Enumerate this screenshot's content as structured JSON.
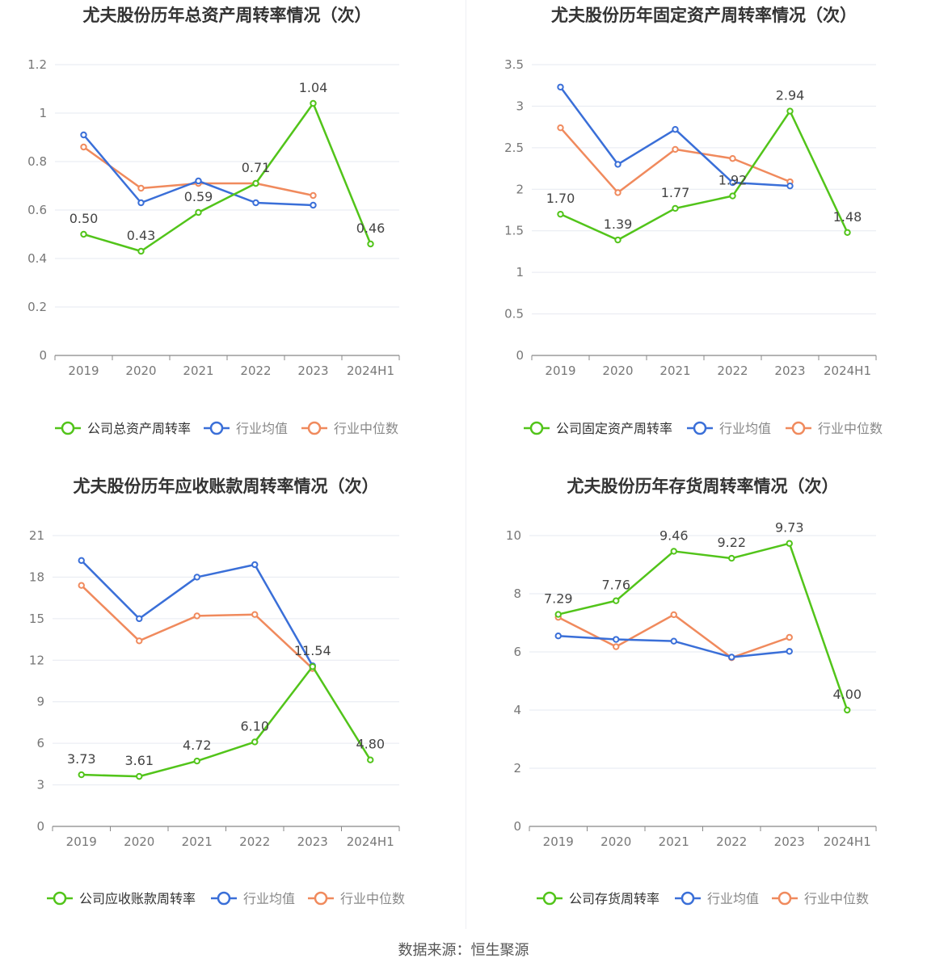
{
  "colors": {
    "company": "#52c41a",
    "avg": "#3a6fd8",
    "median": "#f08a5d",
    "grid": "#e6e9f0",
    "axis": "#777777",
    "label": "#444444",
    "title": "#333333"
  },
  "source_text": "数据来源：恒生聚源",
  "chart_data": [
    {
      "type": "line",
      "title": "尤夫股份历年总资产周转率情况（次）",
      "categories": [
        "2019",
        "2020",
        "2021",
        "2022",
        "2023",
        "2024H1"
      ],
      "ylim": [
        0,
        1.2
      ],
      "yticks": [
        0,
        0.2,
        0.4,
        0.6,
        0.8,
        1,
        1.2
      ],
      "ytick_labels": [
        "0",
        "0.2",
        "0.4",
        "0.6",
        "0.8",
        "1",
        "1.2"
      ],
      "legend": "bottom",
      "grid": true,
      "series": [
        {
          "name": "公司总资产周转率",
          "values": [
            0.5,
            0.43,
            0.59,
            0.71,
            1.04,
            0.46
          ],
          "labels": [
            "0.50",
            "0.43",
            "0.59",
            "0.71",
            "1.04",
            "0.46"
          ]
        },
        {
          "name": "行业均值",
          "values": [
            0.91,
            0.63,
            0.72,
            0.63,
            0.62,
            null
          ]
        },
        {
          "name": "行业中位数",
          "values": [
            0.86,
            0.69,
            0.71,
            0.71,
            0.66,
            null
          ]
        }
      ]
    },
    {
      "type": "line",
      "title": "尤夫股份历年固定资产周转率情况（次）",
      "categories": [
        "2019",
        "2020",
        "2021",
        "2022",
        "2023",
        "2024H1"
      ],
      "ylim": [
        0,
        3.5
      ],
      "yticks": [
        0,
        0.5,
        1,
        1.5,
        2,
        2.5,
        3,
        3.5
      ],
      "ytick_labels": [
        "0",
        "0.5",
        "1",
        "1.5",
        "2",
        "2.5",
        "3",
        "3.5"
      ],
      "legend": "bottom",
      "grid": true,
      "series": [
        {
          "name": "公司固定资产周转率",
          "values": [
            1.7,
            1.39,
            1.77,
            1.92,
            2.94,
            1.48
          ],
          "labels": [
            "1.70",
            "1.39",
            "1.77",
            "1.92",
            "2.94",
            "1.48"
          ]
        },
        {
          "name": "行业均值",
          "values": [
            3.23,
            2.3,
            2.72,
            2.08,
            2.04,
            null
          ]
        },
        {
          "name": "行业中位数",
          "values": [
            2.74,
            1.96,
            2.48,
            2.37,
            2.09,
            null
          ]
        }
      ]
    },
    {
      "type": "line",
      "title": "尤夫股份历年应收账款周转率情况（次）",
      "categories": [
        "2019",
        "2020",
        "2021",
        "2022",
        "2023",
        "2024H1"
      ],
      "ylim": [
        0,
        21
      ],
      "yticks": [
        0,
        3,
        6,
        9,
        12,
        15,
        18,
        21
      ],
      "ytick_labels": [
        "0",
        "3",
        "6",
        "9",
        "12",
        "15",
        "18",
        "21"
      ],
      "legend": "bottom",
      "grid": true,
      "series": [
        {
          "name": "公司应收账款周转率",
          "values": [
            3.73,
            3.61,
            4.72,
            6.1,
            11.54,
            4.8
          ],
          "labels": [
            "3.73",
            "3.61",
            "4.72",
            "6.10",
            "11.54",
            "4.80"
          ]
        },
        {
          "name": "行业均值",
          "values": [
            19.2,
            15.0,
            18.0,
            18.9,
            11.6,
            null
          ]
        },
        {
          "name": "行业中位数",
          "values": [
            17.4,
            13.4,
            15.2,
            15.3,
            11.4,
            null
          ]
        }
      ]
    },
    {
      "type": "line",
      "title": "尤夫股份历年存货周转率情况（次）",
      "categories": [
        "2019",
        "2020",
        "2021",
        "2022",
        "2023",
        "2024H1"
      ],
      "ylim": [
        0,
        10
      ],
      "yticks": [
        0,
        2,
        4,
        6,
        8,
        10
      ],
      "ytick_labels": [
        "0",
        "2",
        "4",
        "6",
        "8",
        "10"
      ],
      "legend": "bottom",
      "grid": true,
      "series": [
        {
          "name": "公司存货周转率",
          "values": [
            7.29,
            7.76,
            9.46,
            9.22,
            9.73,
            4.0
          ],
          "labels": [
            "7.29",
            "7.76",
            "9.46",
            "9.22",
            "9.73",
            "4.00"
          ]
        },
        {
          "name": "行业均值",
          "values": [
            6.55,
            6.43,
            6.37,
            5.82,
            6.02,
            null
          ]
        },
        {
          "name": "行业中位数",
          "values": [
            7.19,
            6.18,
            7.28,
            5.8,
            6.5,
            null
          ]
        }
      ]
    }
  ]
}
